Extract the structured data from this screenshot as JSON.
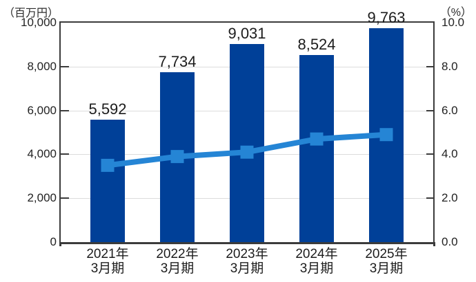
{
  "colors": {
    "bar": "#004098",
    "line": "#2585d5",
    "grid": "#dcdcdc",
    "axis": "#3b3b3b",
    "text": "#1c1c1c"
  },
  "chart_data": {
    "type": "bar",
    "title": "",
    "legend": false,
    "grid": true,
    "categories": [
      {
        "line1": "2021年",
        "line2": "3月期"
      },
      {
        "line1": "2022年",
        "line2": "3月期"
      },
      {
        "line1": "2023年",
        "line2": "3月期"
      },
      {
        "line1": "2024年",
        "line2": "3月期"
      },
      {
        "line1": "2025年",
        "line2": "3月期"
      }
    ],
    "series": [
      {
        "name": "bar-series",
        "type": "bar",
        "axis": "left",
        "values": [
          5592,
          7734,
          9031,
          8524,
          9763
        ],
        "data_labels": [
          "5,592",
          "7,734",
          "9,031",
          "8,524",
          "9,763"
        ],
        "color": "#004098"
      },
      {
        "name": "line-series",
        "type": "line",
        "axis": "right",
        "values": [
          3.5,
          3.9,
          4.1,
          4.7,
          4.9
        ],
        "color": "#2585d5"
      }
    ],
    "left_axis": {
      "title": "（百万円）",
      "min": 0,
      "max": 10000,
      "tick_labels": [
        "10,000",
        "8,000",
        "6,000",
        "4,000",
        "2,000",
        "0"
      ]
    },
    "right_axis": {
      "title": "（%）",
      "min": 0,
      "max": 10,
      "tick_labels": [
        "10.0",
        "8.0",
        "6.0",
        "4.0",
        "2.0",
        "0.0"
      ]
    }
  }
}
